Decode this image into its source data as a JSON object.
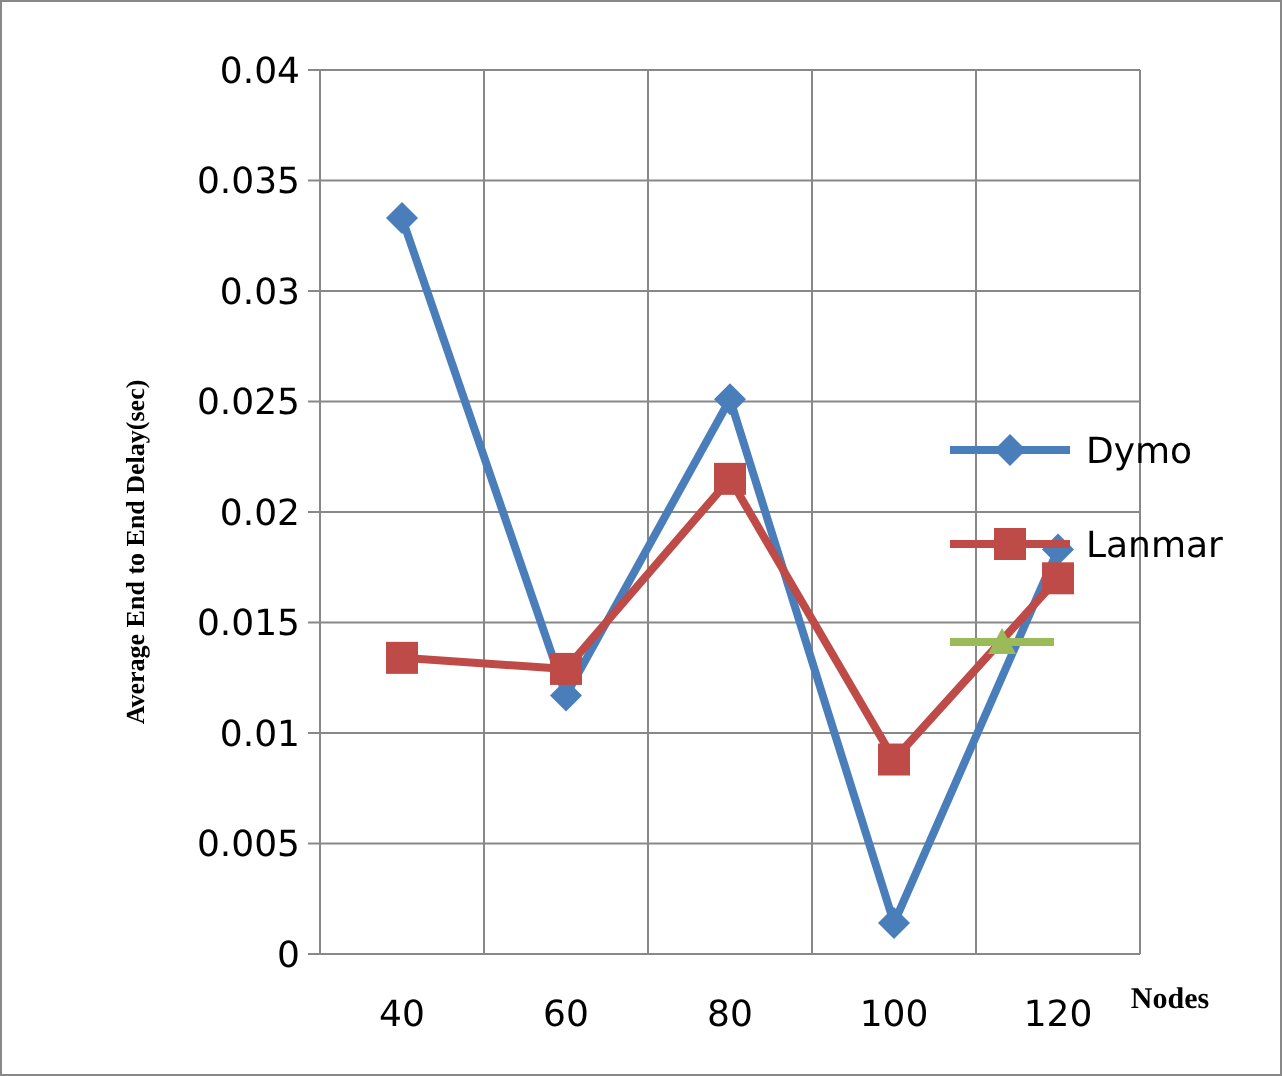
{
  "chart_data": {
    "type": "line",
    "xlabel": "Nodes",
    "ylabel": "Average End to End Delay(sec)",
    "categories": [
      "40",
      "60",
      "80",
      "100",
      "120"
    ],
    "series": [
      {
        "name": "Dymo",
        "color": "#4a7ebb",
        "marker": "diamond",
        "values": [
          0.0333,
          0.0117,
          0.0251,
          0.0014,
          0.0183
        ]
      },
      {
        "name": "Lanmar",
        "color": "#be4b48",
        "marker": "square",
        "values": [
          0.0134,
          0.0129,
          0.0215,
          0.0088,
          0.017
        ]
      }
    ],
    "ylim": [
      0,
      0.04
    ],
    "yticks": [
      0,
      0.005,
      0.01,
      0.015,
      0.02,
      0.025,
      0.03,
      0.035,
      0.04
    ],
    "grid": true,
    "legend": "right"
  }
}
